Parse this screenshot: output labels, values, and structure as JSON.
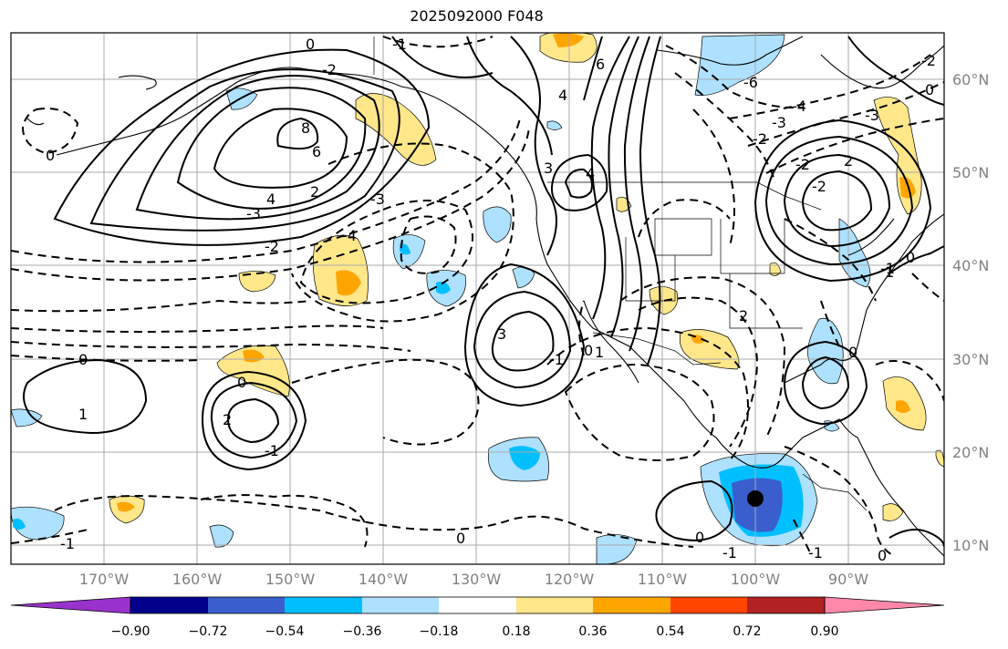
{
  "title": "2025092000 F048",
  "map": {
    "lat_labels": [
      "60°N",
      "50°N",
      "40°N",
      "30°N",
      "20°N",
      "10°N"
    ],
    "lon_labels": [
      "170°W",
      "160°W",
      "150°W",
      "140°W",
      "130°W",
      "120°W",
      "110°W",
      "100°W",
      "90°W"
    ],
    "grid": true,
    "marker": {
      "type": "black-dot",
      "lon": -100,
      "lat": 15
    }
  },
  "colorbar": {
    "ticks": [
      "−0.90",
      "−0.72",
      "−0.54",
      "−0.36",
      "−0.18",
      "0.18",
      "0.36",
      "0.54",
      "0.72",
      "0.90"
    ],
    "colors": [
      "#9932CC",
      "#00008B",
      "#3A5FCD",
      "#00BFFF",
      "#ADE1FF",
      "#FFFFFF",
      "#FFE78A",
      "#FFA500",
      "#FF4500",
      "#B22222",
      "#FF88AA"
    ],
    "extend": "both"
  },
  "contour_labels": [
    "0",
    "-1",
    "-2",
    "6",
    "4",
    "-6",
    "8",
    "6",
    "4",
    "-3",
    "2",
    "-2",
    "-3",
    "-4",
    "3",
    "4",
    "3",
    "-3",
    "-4",
    "-2",
    "-2",
    "-3",
    "2",
    "0",
    "-2",
    "-1",
    "0",
    "0",
    "1",
    "0",
    "-1",
    "2",
    "-1",
    "1",
    "0",
    "0",
    "-1",
    "0",
    "-1",
    "0",
    "0",
    "1",
    "0",
    "-1",
    "2",
    "-2"
  ]
}
